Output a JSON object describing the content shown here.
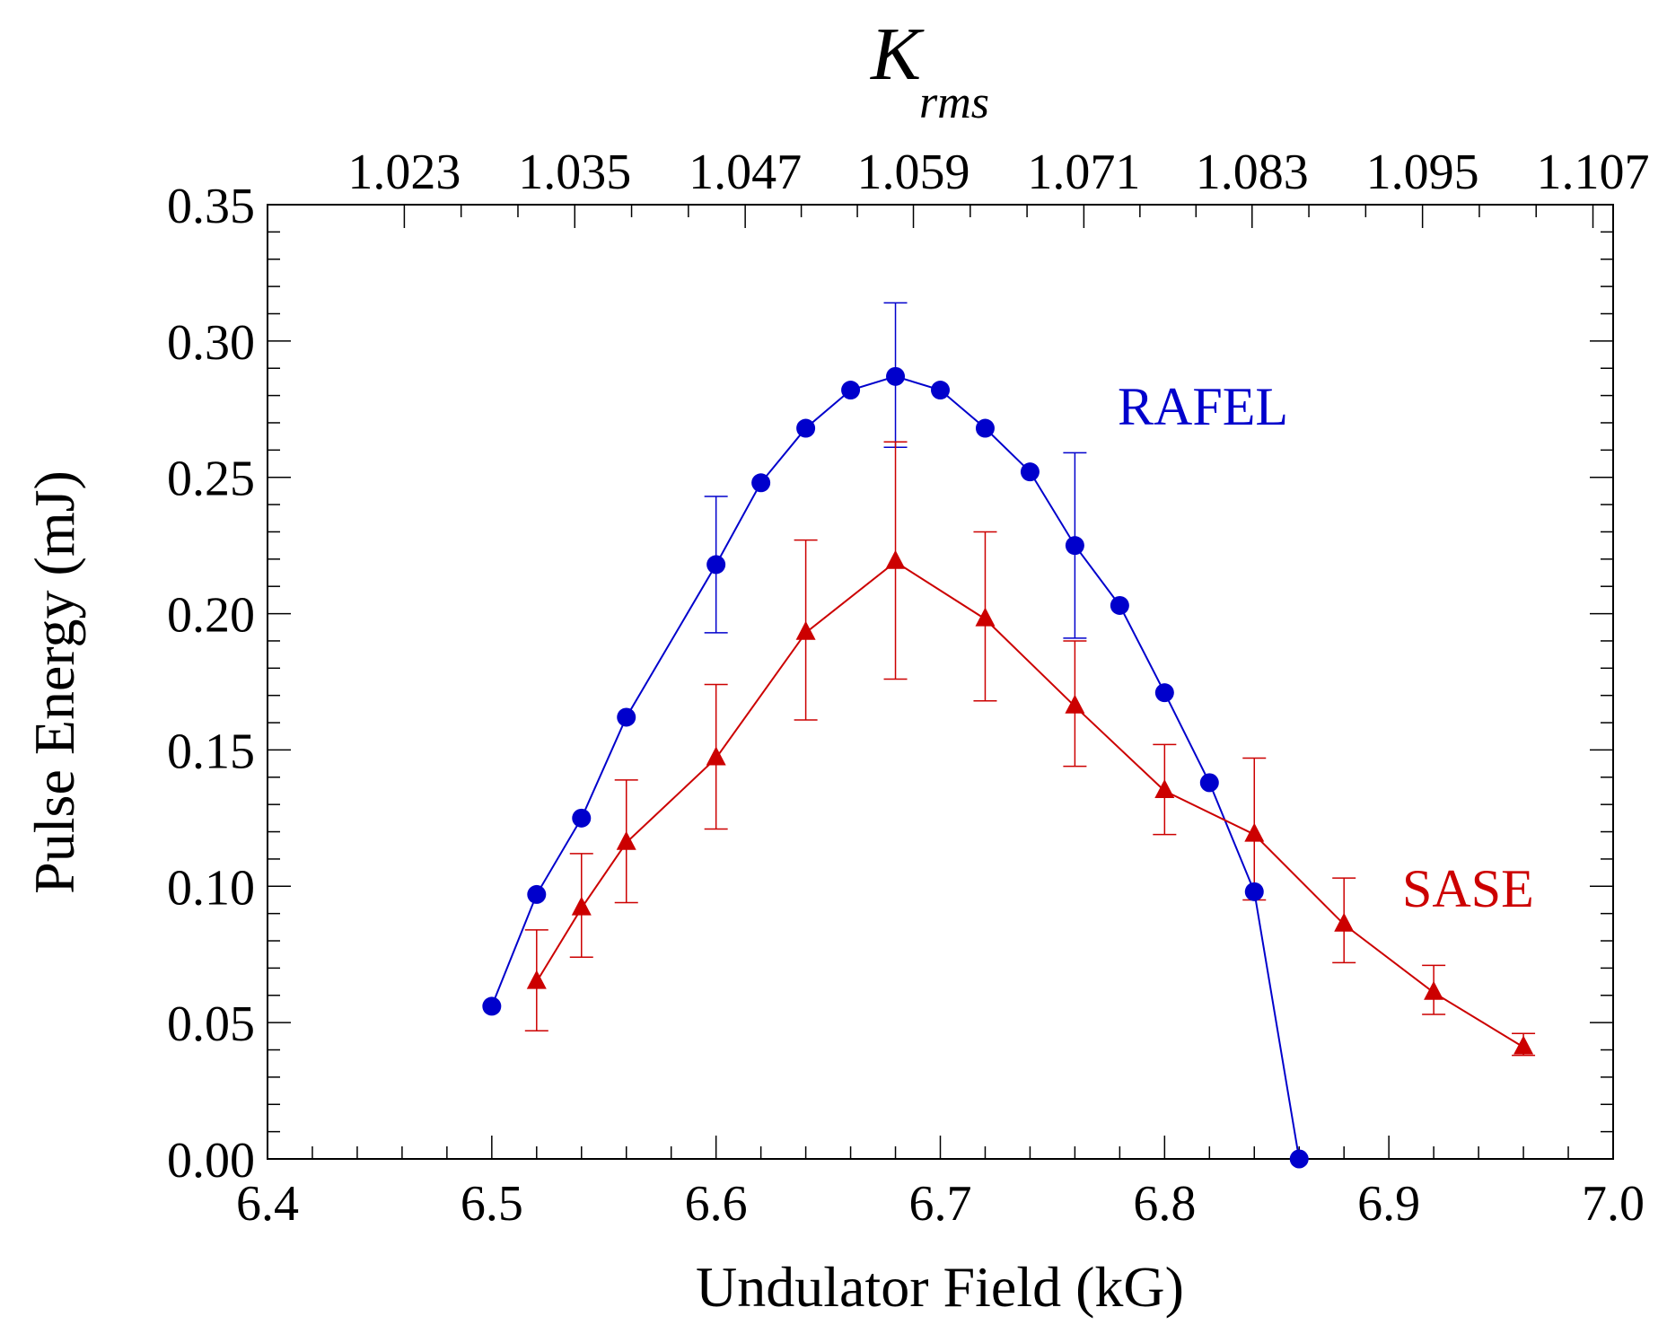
{
  "chart_data": {
    "type": "line",
    "xlabel": "Undulator Field (kG)",
    "ylabel": "Pulse Energy (mJ)",
    "xlim": [
      6.4,
      7.0
    ],
    "ylim": [
      0.0,
      0.35
    ],
    "x_ticks": [
      "6.4",
      "6.5",
      "6.6",
      "6.7",
      "6.8",
      "6.9",
      "7.0"
    ],
    "y_ticks": [
      "0.00",
      "0.05",
      "0.10",
      "0.15",
      "0.20",
      "0.25",
      "0.30",
      "0.35"
    ],
    "top_axis": {
      "label_main": "K",
      "label_sub": "rms",
      "ticks": [
        "1.023",
        "1.035",
        "1.047",
        "1.059",
        "1.071",
        "1.083",
        "1.095",
        "1.107"
      ],
      "tick_x": [
        6.461,
        6.537,
        6.613,
        6.688,
        6.764,
        6.839,
        6.915,
        6.991
      ]
    },
    "grid": false,
    "series": [
      {
        "name": "RAFEL",
        "color": "#0000cc",
        "marker": "circle",
        "x": [
          6.5,
          6.52,
          6.54,
          6.56,
          6.6,
          6.62,
          6.64,
          6.66,
          6.68,
          6.7,
          6.72,
          6.74,
          6.76,
          6.78,
          6.8,
          6.82,
          6.84,
          6.86
        ],
        "y": [
          0.056,
          0.097,
          0.125,
          0.162,
          0.218,
          0.248,
          0.268,
          0.282,
          0.287,
          0.282,
          0.268,
          0.252,
          0.225,
          0.203,
          0.171,
          0.138,
          0.098,
          0.0
        ],
        "errors": [
          {
            "x": 6.6,
            "low": 0.193,
            "high": 0.243
          },
          {
            "x": 6.68,
            "low": 0.261,
            "high": 0.314
          },
          {
            "x": 6.76,
            "low": 0.191,
            "high": 0.259
          }
        ]
      },
      {
        "name": "SASE",
        "color": "#cc0000",
        "marker": "triangle",
        "x": [
          6.52,
          6.54,
          6.56,
          6.6,
          6.64,
          6.68,
          6.72,
          6.76,
          6.8,
          6.84,
          6.88,
          6.92,
          6.96
        ],
        "y": [
          0.065,
          0.092,
          0.116,
          0.147,
          0.193,
          0.219,
          0.198,
          0.166,
          0.135,
          0.119,
          0.086,
          0.061,
          0.041
        ],
        "errors": [
          {
            "x": 6.52,
            "low": 0.047,
            "high": 0.084
          },
          {
            "x": 6.54,
            "low": 0.074,
            "high": 0.112
          },
          {
            "x": 6.56,
            "low": 0.094,
            "high": 0.139
          },
          {
            "x": 6.6,
            "low": 0.121,
            "high": 0.174
          },
          {
            "x": 6.64,
            "low": 0.161,
            "high": 0.227
          },
          {
            "x": 6.68,
            "low": 0.176,
            "high": 0.263
          },
          {
            "x": 6.72,
            "low": 0.168,
            "high": 0.23
          },
          {
            "x": 6.76,
            "low": 0.144,
            "high": 0.19
          },
          {
            "x": 6.8,
            "low": 0.119,
            "high": 0.152
          },
          {
            "x": 6.84,
            "low": 0.095,
            "high": 0.147
          },
          {
            "x": 6.88,
            "low": 0.072,
            "high": 0.103
          },
          {
            "x": 6.92,
            "low": 0.053,
            "high": 0.071
          },
          {
            "x": 6.96,
            "low": 0.038,
            "high": 0.046
          }
        ]
      }
    ],
    "annotations": [
      {
        "text": "RAFEL",
        "series": "RAFEL"
      },
      {
        "text": "SASE",
        "series": "SASE"
      }
    ]
  }
}
